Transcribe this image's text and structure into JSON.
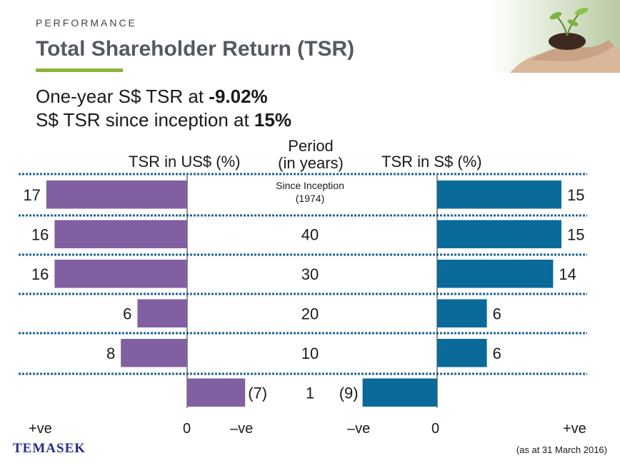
{
  "header": {
    "section": "PERFORMANCE",
    "title": "Total Shareholder Return (TSR)"
  },
  "headline": {
    "line1_prefix": "One-year S$ TSR at ",
    "line1_value": "-9.02%",
    "line2_prefix": "S$ TSR since inception at ",
    "line2_value": "15%"
  },
  "columns": {
    "left": "TSR in US$ (%)",
    "middle_line1": "Period",
    "middle_line2": "(in years)",
    "right": "TSR in S$ (%)"
  },
  "scale": {
    "left_positive": "+ve",
    "left_zero": "0",
    "left_negative": "–ve",
    "right_negative": "–ve",
    "right_zero": "0",
    "right_positive": "+ve"
  },
  "footer": {
    "logo": "TEMASEK",
    "note": "(as at 31 March 2016)"
  },
  "colors": {
    "us_bar": "#8060a0",
    "sgd_bar": "#0a6a9a",
    "accent_underline": "#8cb43c",
    "divider": "#1e6496"
  },
  "chart_data": {
    "type": "bar",
    "categories": [
      "Since Inception (1974)",
      "40",
      "30",
      "20",
      "10",
      "1"
    ],
    "category_labels": [
      [
        "Since Inception",
        "(1974)"
      ],
      [
        "40"
      ],
      [
        "30"
      ],
      [
        "20"
      ],
      [
        "10"
      ],
      [
        "1"
      ]
    ],
    "series": [
      {
        "name": "TSR in US$ (%)",
        "values": [
          17,
          16,
          16,
          6,
          8,
          -7
        ],
        "labels": [
          "17",
          "16",
          "16",
          "6",
          "8",
          "(7)"
        ]
      },
      {
        "name": "TSR in S$ (%)",
        "values": [
          15,
          15,
          14,
          6,
          6,
          -9
        ],
        "labels": [
          "15",
          "15",
          "14",
          "6",
          "6",
          "(9)"
        ]
      }
    ],
    "xlabel": "Period (in years)",
    "ylabel": ""
  }
}
